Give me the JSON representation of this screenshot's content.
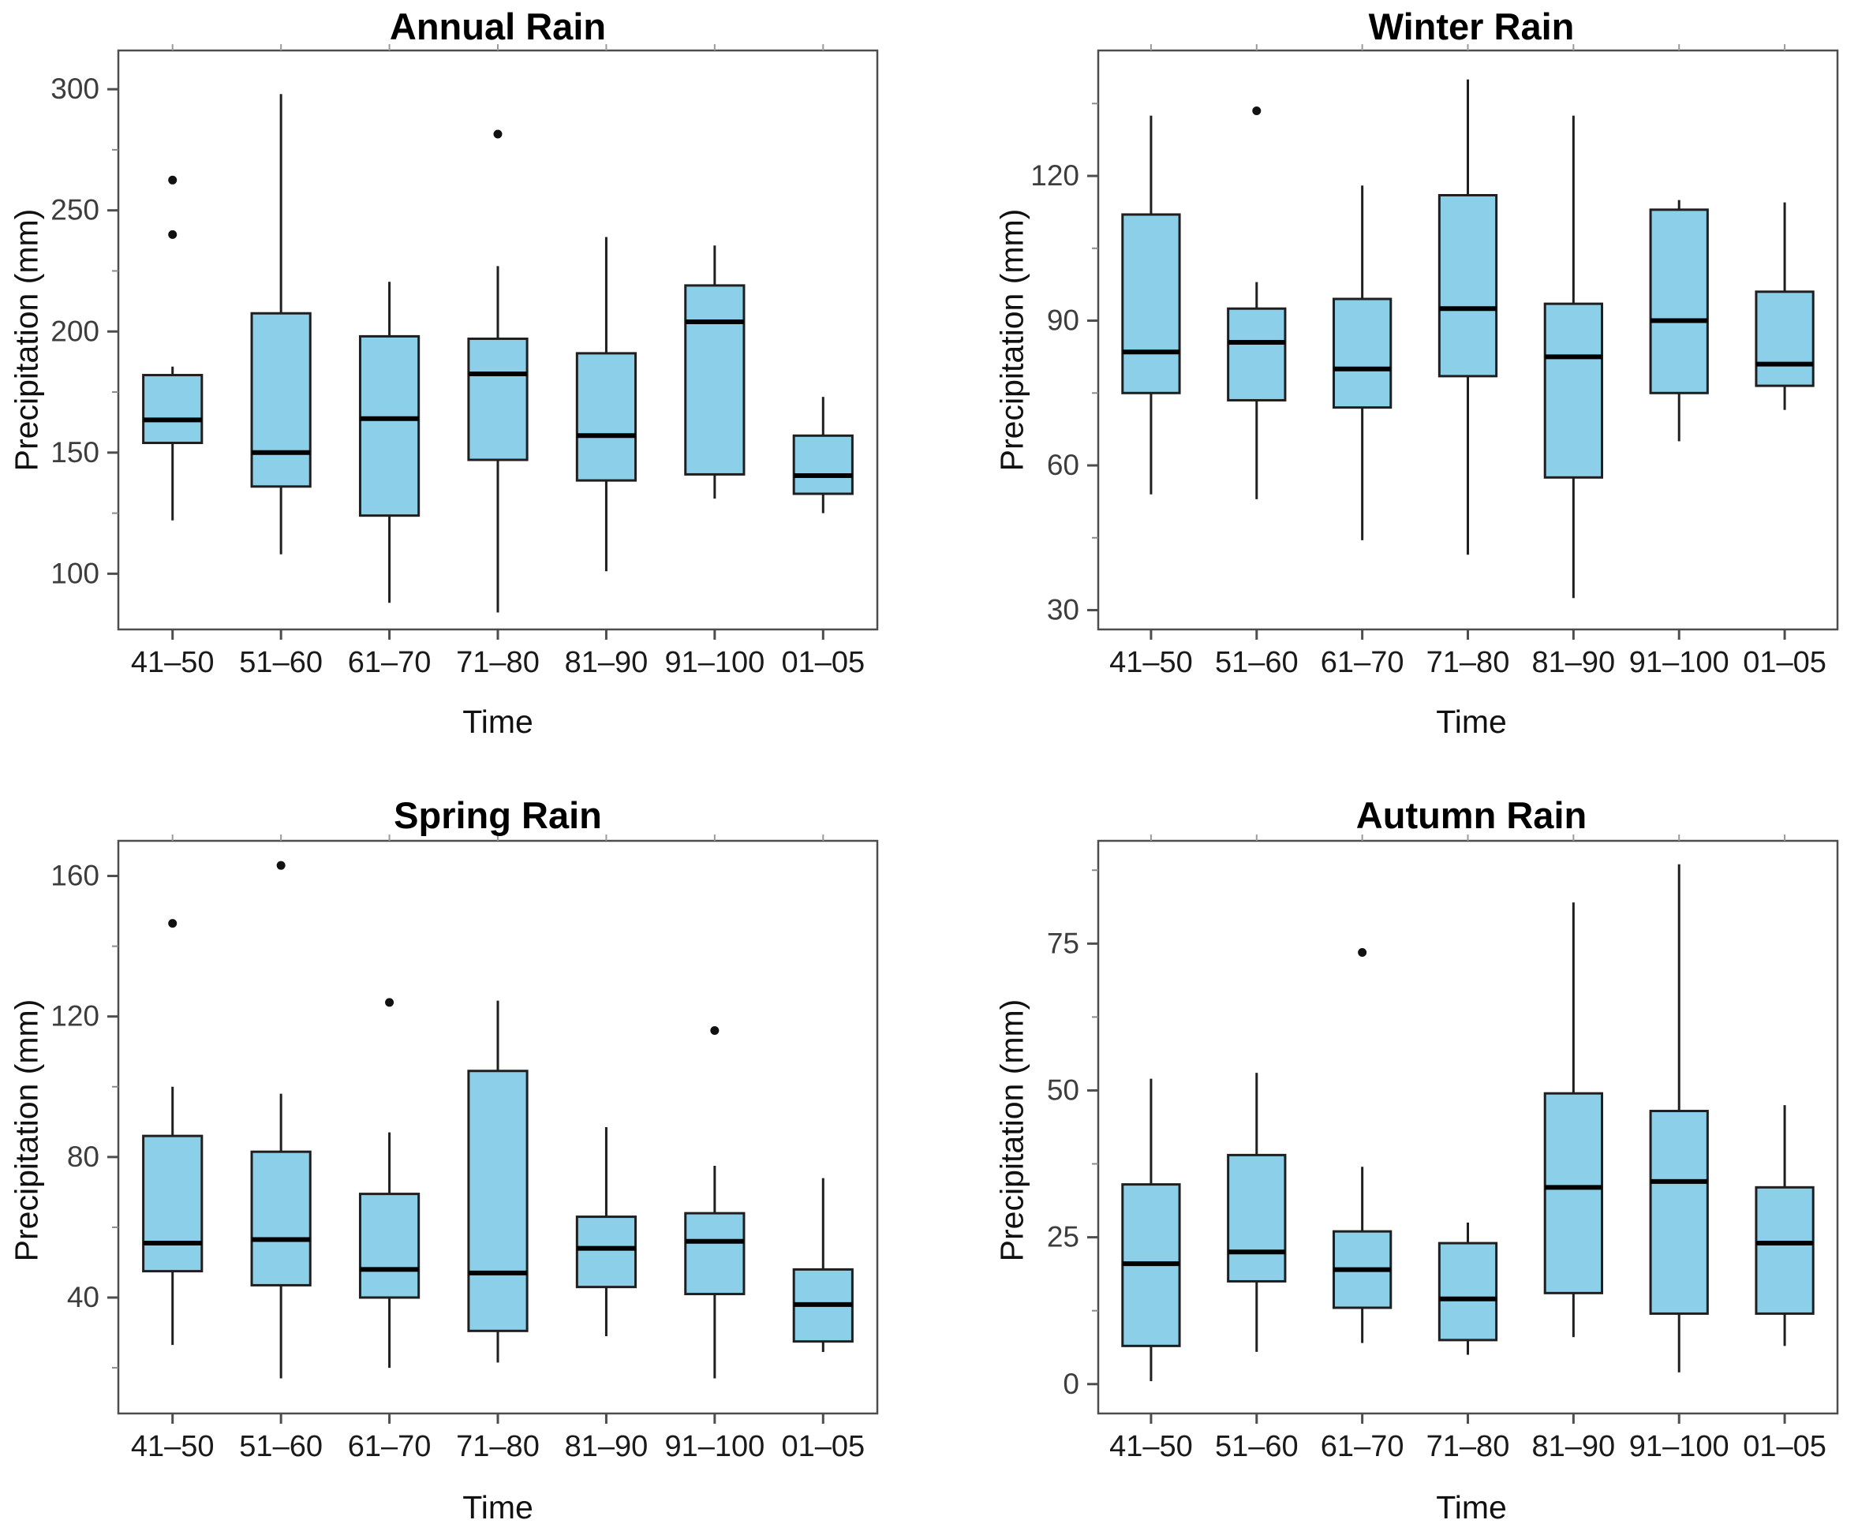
{
  "page": {
    "background": "#ffffff"
  },
  "styles": {
    "box_fill": "#8BCFE9",
    "box_stroke": "#1f1f1f",
    "median_color": "#000000",
    "whisker_color": "#1f1f1f",
    "outlier_color": "#111111",
    "panel_border_color": "#4d4d4d",
    "tick_color": "#4d4d4d",
    "minor_tick_color": "#8a8a8a",
    "top_tick_color": "#9a9a9a",
    "tick_label_color": "#3d3d3d",
    "category_label_color": "#1a1a1a"
  },
  "chart_data": [
    {
      "type": "boxplot",
      "title": "Annual Rain",
      "xlabel": "Time",
      "ylabel": "Precipitation (mm)",
      "categories": [
        "41–50",
        "51–60",
        "61–70",
        "71–80",
        "81–90",
        "91–100",
        "01–05"
      ],
      "ylim": [
        77,
        316
      ],
      "yticks": [
        100,
        150,
        200,
        250,
        300
      ],
      "yticks_minor": [
        125,
        175,
        225,
        275
      ],
      "grid": false,
      "legend": "none",
      "boxes": [
        {
          "category": "41–50",
          "whisker_low": 122,
          "q1": 154,
          "median": 163.5,
          "q3": 182,
          "whisker_high": 185.5,
          "outliers": [
            262.5,
            240
          ]
        },
        {
          "category": "51–60",
          "whisker_low": 108,
          "q1": 136,
          "median": 150,
          "q3": 207.5,
          "whisker_high": 298,
          "outliers": []
        },
        {
          "category": "61–70",
          "whisker_low": 88,
          "q1": 124,
          "median": 164,
          "q3": 198,
          "whisker_high": 220.5,
          "outliers": []
        },
        {
          "category": "71–80",
          "whisker_low": 84,
          "q1": 147,
          "median": 182.5,
          "q3": 197,
          "whisker_high": 227,
          "outliers": [
            281.5
          ]
        },
        {
          "category": "81–90",
          "whisker_low": 101,
          "q1": 138.5,
          "median": 157,
          "q3": 191,
          "whisker_high": 239,
          "outliers": []
        },
        {
          "category": "91–100",
          "whisker_low": 131,
          "q1": 141,
          "median": 204,
          "q3": 219,
          "whisker_high": 235.5,
          "outliers": []
        },
        {
          "category": "01–05",
          "whisker_low": 125,
          "q1": 133,
          "median": 140.5,
          "q3": 157,
          "whisker_high": 173,
          "outliers": []
        }
      ]
    },
    {
      "type": "boxplot",
      "title": "Winter Rain",
      "xlabel": "Time",
      "ylabel": "Precipitation (mm)",
      "categories": [
        "41–50",
        "51–60",
        "61–70",
        "71–80",
        "81–90",
        "91–100",
        "01–05"
      ],
      "ylim": [
        26,
        146
      ],
      "yticks": [
        30,
        60,
        90,
        120
      ],
      "yticks_minor": [
        45,
        75,
        105,
        135
      ],
      "grid": false,
      "legend": "none",
      "boxes": [
        {
          "category": "41–50",
          "whisker_low": 54,
          "q1": 75,
          "median": 83.5,
          "q3": 112,
          "whisker_high": 132.5,
          "outliers": []
        },
        {
          "category": "51–60",
          "whisker_low": 53,
          "q1": 73.5,
          "median": 85.5,
          "q3": 92.5,
          "whisker_high": 98,
          "outliers": [
            133.5
          ]
        },
        {
          "category": "61–70",
          "whisker_low": 44.5,
          "q1": 72,
          "median": 80,
          "q3": 94.5,
          "whisker_high": 118,
          "outliers": []
        },
        {
          "category": "71–80",
          "whisker_low": 41.5,
          "q1": 78.5,
          "median": 92.5,
          "q3": 116,
          "whisker_high": 140,
          "outliers": []
        },
        {
          "category": "81–90",
          "whisker_low": 32.5,
          "q1": 57.5,
          "median": 82.5,
          "q3": 93.5,
          "whisker_high": 132.5,
          "outliers": []
        },
        {
          "category": "91–100",
          "whisker_low": 65,
          "q1": 75,
          "median": 90,
          "q3": 113,
          "whisker_high": 115,
          "outliers": []
        },
        {
          "category": "01–05",
          "whisker_low": 71.5,
          "q1": 76.5,
          "median": 81,
          "q3": 96,
          "whisker_high": 114.5,
          "outliers": []
        }
      ]
    },
    {
      "type": "boxplot",
      "title": "Spring Rain",
      "xlabel": "Time",
      "ylabel": "Precipitation (mm)",
      "categories": [
        "41–50",
        "51–60",
        "61–70",
        "71–80",
        "81–90",
        "91–100",
        "01–05"
      ],
      "ylim": [
        7,
        170
      ],
      "yticks": [
        40,
        80,
        120,
        160
      ],
      "yticks_minor": [
        20,
        60,
        100,
        140
      ],
      "grid": false,
      "legend": "none",
      "boxes": [
        {
          "category": "41–50",
          "whisker_low": 26.5,
          "q1": 47.5,
          "median": 55.5,
          "q3": 86,
          "whisker_high": 100,
          "outliers": [
            146.5
          ]
        },
        {
          "category": "51–60",
          "whisker_low": 17,
          "q1": 43.5,
          "median": 56.5,
          "q3": 81.5,
          "whisker_high": 98,
          "outliers": [
            163
          ]
        },
        {
          "category": "61–70",
          "whisker_low": 20,
          "q1": 40,
          "median": 48,
          "q3": 69.5,
          "whisker_high": 87,
          "outliers": [
            124
          ]
        },
        {
          "category": "71–80",
          "whisker_low": 21.5,
          "q1": 30.5,
          "median": 47,
          "q3": 104.5,
          "whisker_high": 124.5,
          "outliers": []
        },
        {
          "category": "81–90",
          "whisker_low": 29,
          "q1": 43,
          "median": 54,
          "q3": 63,
          "whisker_high": 88.5,
          "outliers": []
        },
        {
          "category": "91–100",
          "whisker_low": 17,
          "q1": 41,
          "median": 56,
          "q3": 64,
          "whisker_high": 77.5,
          "outliers": [
            116
          ]
        },
        {
          "category": "01–05",
          "whisker_low": 24.5,
          "q1": 27.5,
          "median": 38,
          "q3": 48,
          "whisker_high": 74,
          "outliers": []
        }
      ]
    },
    {
      "type": "boxplot",
      "title": "Autumn Rain",
      "xlabel": "Time",
      "ylabel": "Precipitation (mm)",
      "categories": [
        "41–50",
        "51–60",
        "61–70",
        "71–80",
        "81–90",
        "91–100",
        "01–05"
      ],
      "ylim": [
        -5,
        92.5
      ],
      "yticks": [
        0,
        25,
        50,
        75
      ],
      "yticks_minor": [
        12.5,
        37.5,
        62.5,
        87.5
      ],
      "grid": false,
      "legend": "none",
      "boxes": [
        {
          "category": "41–50",
          "whisker_low": 0.5,
          "q1": 6.5,
          "median": 20.5,
          "q3": 34,
          "whisker_high": 52,
          "outliers": []
        },
        {
          "category": "51–60",
          "whisker_low": 5.5,
          "q1": 17.5,
          "median": 22.5,
          "q3": 39,
          "whisker_high": 53,
          "outliers": []
        },
        {
          "category": "61–70",
          "whisker_low": 7,
          "q1": 13,
          "median": 19.5,
          "q3": 26,
          "whisker_high": 37,
          "outliers": [
            73.5
          ]
        },
        {
          "category": "71–80",
          "whisker_low": 5,
          "q1": 7.5,
          "median": 14.5,
          "q3": 24,
          "whisker_high": 27.5,
          "outliers": []
        },
        {
          "category": "81–90",
          "whisker_low": 8,
          "q1": 15.5,
          "median": 33.5,
          "q3": 49.5,
          "whisker_high": 82,
          "outliers": []
        },
        {
          "category": "91–100",
          "whisker_low": 2,
          "q1": 12,
          "median": 34.5,
          "q3": 46.5,
          "whisker_high": 88.5,
          "outliers": []
        },
        {
          "category": "01–05",
          "whisker_low": 6.5,
          "q1": 12,
          "median": 24,
          "q3": 33.5,
          "whisker_high": 47.5,
          "outliers": []
        }
      ]
    }
  ]
}
